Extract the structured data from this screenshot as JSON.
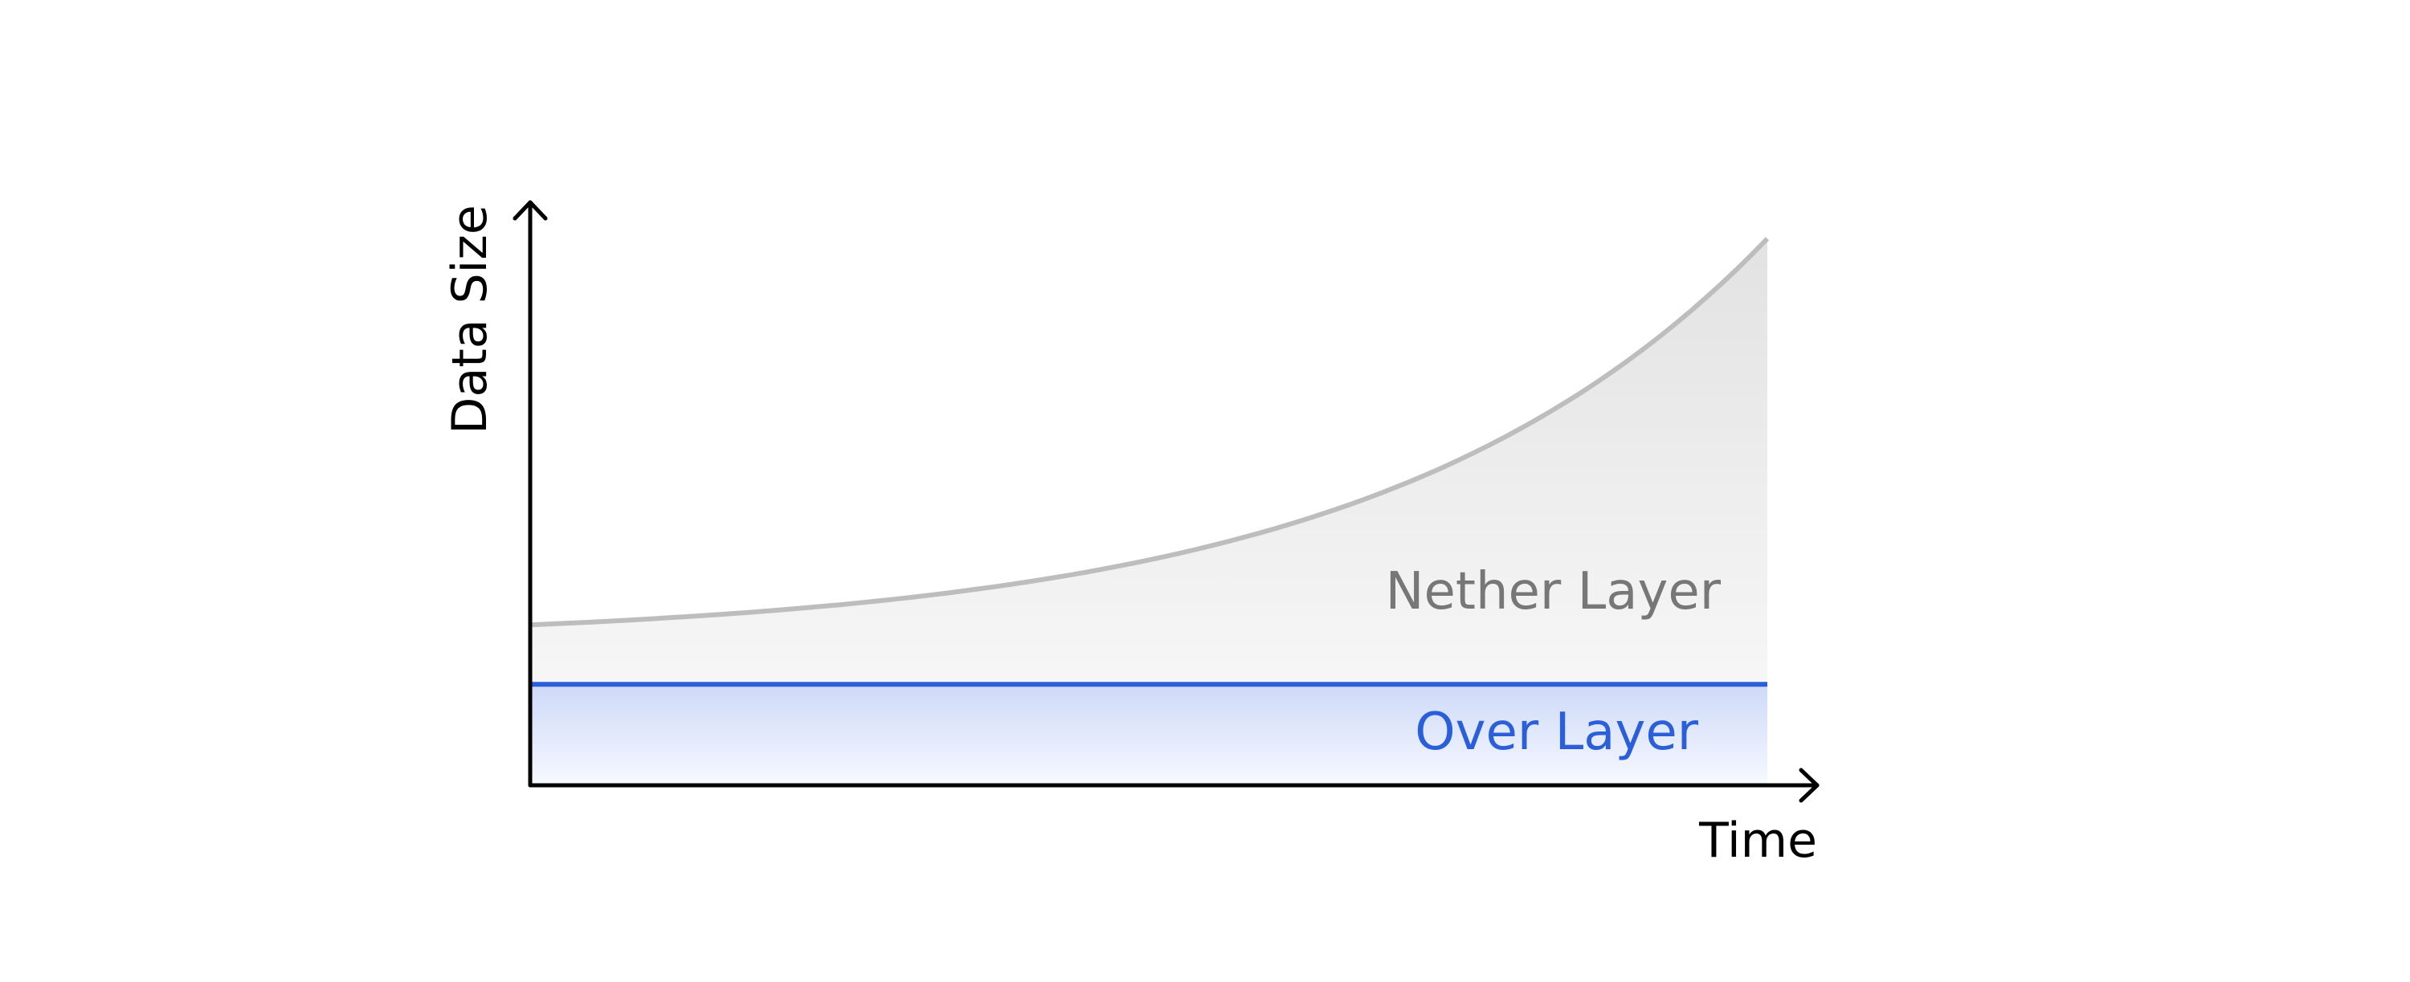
{
  "chart_data": {
    "type": "area",
    "title": "",
    "xlabel": "Time",
    "ylabel": "Data Size",
    "grid": false,
    "legend": "none",
    "series": [
      {
        "name": "Nether Layer",
        "shape": "exponential growth",
        "start": 0.27,
        "end": 0.92,
        "color": "#bdbdbd",
        "fill": "#e8e8e8"
      },
      {
        "name": "Over Layer",
        "shape": "constant",
        "start": 0.17,
        "end": 0.17,
        "color": "#2b5fd9",
        "fill": "#d2ddfa"
      }
    ]
  }
}
